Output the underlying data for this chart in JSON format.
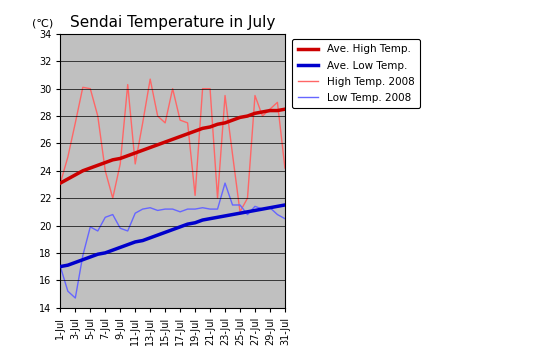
{
  "title": "Sendai Temperature in July",
  "ylabel": "(℃)",
  "ylim": [
    14,
    34
  ],
  "yticks": [
    14,
    16,
    18,
    20,
    22,
    24,
    26,
    28,
    30,
    32,
    34
  ],
  "days": [
    1,
    2,
    3,
    4,
    5,
    6,
    7,
    8,
    9,
    10,
    11,
    12,
    13,
    14,
    15,
    16,
    17,
    18,
    19,
    20,
    21,
    22,
    23,
    24,
    25,
    26,
    27,
    28,
    29,
    30,
    31
  ],
  "xtick_labels": [
    "1-Jul",
    "3-Jul",
    "5-Jul",
    "7-Jul",
    "9-Jul",
    "11-Jul",
    "13-Jul",
    "15-Jul",
    "17-Jul",
    "19-Jul",
    "21-Jul",
    "23-Jul",
    "25-Jul",
    "27-Jul",
    "29-Jul",
    "31-Jul"
  ],
  "xtick_positions": [
    1,
    3,
    5,
    7,
    9,
    11,
    13,
    15,
    17,
    19,
    21,
    23,
    25,
    27,
    29,
    31
  ],
  "ave_high": [
    23.1,
    23.4,
    23.7,
    24.0,
    24.2,
    24.4,
    24.6,
    24.8,
    24.9,
    25.1,
    25.3,
    25.5,
    25.7,
    25.9,
    26.1,
    26.3,
    26.5,
    26.7,
    26.9,
    27.1,
    27.2,
    27.4,
    27.5,
    27.7,
    27.9,
    28.0,
    28.2,
    28.3,
    28.4,
    28.4,
    28.5
  ],
  "ave_low": [
    17.0,
    17.1,
    17.3,
    17.5,
    17.7,
    17.9,
    18.0,
    18.2,
    18.4,
    18.6,
    18.8,
    18.9,
    19.1,
    19.3,
    19.5,
    19.7,
    19.9,
    20.1,
    20.2,
    20.4,
    20.5,
    20.6,
    20.7,
    20.8,
    20.9,
    21.0,
    21.1,
    21.2,
    21.3,
    21.4,
    21.5
  ],
  "high_2008": [
    23.1,
    25.0,
    27.5,
    30.1,
    30.0,
    28.0,
    24.0,
    22.0,
    24.5,
    30.3,
    24.5,
    27.5,
    30.7,
    28.0,
    27.5,
    30.0,
    27.7,
    27.5,
    22.2,
    30.0,
    30.0,
    22.0,
    29.5,
    25.2,
    21.0,
    22.0,
    29.5,
    28.0,
    28.5,
    29.0,
    24.2
  ],
  "low_2008": [
    17.0,
    15.2,
    14.7,
    17.8,
    19.9,
    19.6,
    20.6,
    20.8,
    19.8,
    19.6,
    20.9,
    21.2,
    21.3,
    21.1,
    21.2,
    21.2,
    21.0,
    21.2,
    21.2,
    21.3,
    21.2,
    21.2,
    23.1,
    21.5,
    21.5,
    20.8,
    21.4,
    21.2,
    21.3,
    20.8,
    20.5
  ],
  "ave_high_color": "#cc0000",
  "ave_low_color": "#0000cc",
  "high_2008_color": "#ff6666",
  "low_2008_color": "#6666ff",
  "plot_bg_color": "#c0c0c0",
  "grid_color": "#000000",
  "legend_labels": [
    "Ave. High Temp.",
    "Ave. Low Temp.",
    "High Temp. 2008",
    "Low Temp. 2008"
  ],
  "ave_high_lw": 2.5,
  "ave_low_lw": 2.5,
  "high_2008_lw": 1.0,
  "low_2008_lw": 1.0
}
